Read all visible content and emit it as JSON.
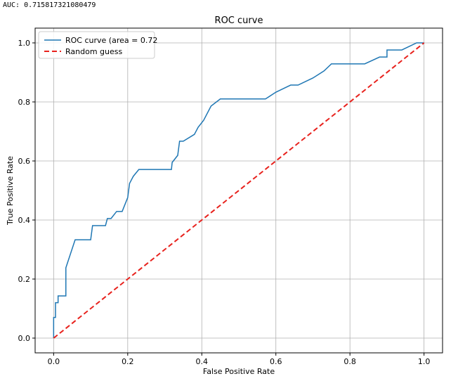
{
  "console": {
    "text": "AUC: 0.715817321080479"
  },
  "colors": {
    "roc": "#1f77b4",
    "random": "#e8221d",
    "grid": "#b0b0b0",
    "axes": "#000000"
  },
  "chart_data": {
    "type": "line",
    "title": "ROC curve",
    "xlabel": "False Positive Rate",
    "ylabel": "True Positive Rate",
    "xlim": [
      -0.05,
      1.05
    ],
    "ylim": [
      -0.05,
      1.05
    ],
    "xticks": [
      0.0,
      0.2,
      0.4,
      0.6,
      0.8,
      1.0
    ],
    "yticks": [
      0.0,
      0.2,
      0.4,
      0.6,
      0.8,
      1.0
    ],
    "xtick_labels": [
      "0.0",
      "0.2",
      "0.4",
      "0.6",
      "0.8",
      "1.0"
    ],
    "ytick_labels": [
      "0.0",
      "0.2",
      "0.4",
      "0.6",
      "0.8",
      "1.0"
    ],
    "grid": true,
    "legend": "upper-left",
    "series": [
      {
        "name": "ROC curve (area =  0.72",
        "style": "solid",
        "x": [
          0.0,
          0.0,
          0.005,
          0.005,
          0.012,
          0.012,
          0.018,
          0.018,
          0.033,
          0.033,
          0.058,
          0.1,
          0.105,
          0.14,
          0.145,
          0.155,
          0.17,
          0.185,
          0.2,
          0.205,
          0.215,
          0.23,
          0.318,
          0.32,
          0.335,
          0.34,
          0.35,
          0.38,
          0.39,
          0.405,
          0.425,
          0.45,
          0.572,
          0.6,
          0.64,
          0.66,
          0.7,
          0.73,
          0.75,
          0.84,
          0.88,
          0.9,
          0.9,
          0.94,
          0.98,
          1.0
        ],
        "y": [
          0.0,
          0.07,
          0.07,
          0.12,
          0.12,
          0.143,
          0.143,
          0.143,
          0.143,
          0.238,
          0.333,
          0.333,
          0.381,
          0.381,
          0.405,
          0.405,
          0.429,
          0.429,
          0.476,
          0.524,
          0.548,
          0.571,
          0.571,
          0.595,
          0.619,
          0.667,
          0.667,
          0.69,
          0.714,
          0.738,
          0.786,
          0.81,
          0.81,
          0.833,
          0.857,
          0.857,
          0.881,
          0.905,
          0.929,
          0.929,
          0.952,
          0.952,
          0.976,
          0.976,
          1.0,
          1.0
        ]
      },
      {
        "name": "Random guess",
        "style": "dashed",
        "x": [
          0.0,
          1.0
        ],
        "y": [
          0.0,
          1.0
        ]
      }
    ]
  }
}
